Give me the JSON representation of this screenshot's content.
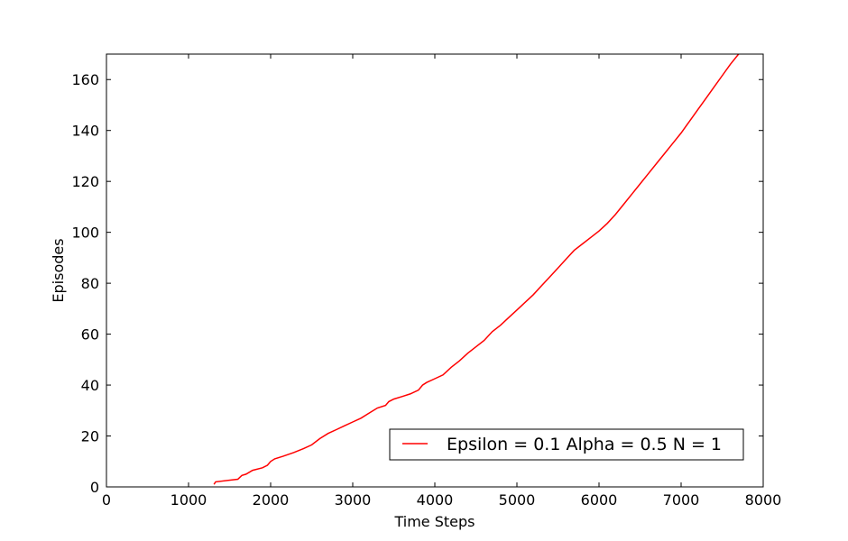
{
  "chart_data": {
    "type": "line",
    "xlabel": "Time Steps",
    "ylabel": "Episodes",
    "xlim": [
      0,
      8000
    ],
    "ylim": [
      0,
      170
    ],
    "xticks": [
      0,
      1000,
      2000,
      3000,
      4000,
      5000,
      6000,
      7000,
      8000
    ],
    "yticks": [
      0,
      20,
      40,
      60,
      80,
      100,
      120,
      140,
      160
    ],
    "grid": false,
    "legend_position": "lower-right",
    "series": [
      {
        "name": "Epsilon = 0.1 Alpha = 0.5 N = 1",
        "color": "#ff0000",
        "x": [
          1310,
          1330,
          1600,
          1650,
          1700,
          1780,
          1900,
          1960,
          2000,
          2050,
          2150,
          2280,
          2400,
          2500,
          2600,
          2700,
          2800,
          2900,
          3000,
          3100,
          3200,
          3300,
          3400,
          3440,
          3500,
          3600,
          3700,
          3800,
          3850,
          3900,
          4000,
          4100,
          4200,
          4300,
          4400,
          4500,
          4600,
          4700,
          4800,
          4900,
          5000,
          5100,
          5200,
          5300,
          5400,
          5500,
          5600,
          5700,
          5800,
          5900,
          6000,
          6100,
          6200,
          6300,
          6400,
          6500,
          6600,
          6700,
          6800,
          6900,
          7000,
          7100,
          7200,
          7300,
          7400,
          7500,
          7600,
          7700,
          7790
        ],
        "y": [
          1,
          2,
          3,
          4.5,
          5,
          6.5,
          7.5,
          8.5,
          10,
          11,
          12,
          13.5,
          15,
          16.5,
          19,
          21,
          22.5,
          24,
          25.5,
          27,
          29,
          31,
          32,
          33.5,
          34.5,
          35.5,
          36.5,
          38,
          40,
          41,
          42.5,
          44,
          47,
          49.5,
          52.5,
          55,
          57.5,
          61,
          63.5,
          66.5,
          69.5,
          72.5,
          75.5,
          79,
          82.5,
          86,
          89.5,
          93,
          95.5,
          98,
          100.5,
          103.5,
          107,
          111,
          115,
          119,
          123,
          127,
          131,
          135,
          139,
          143.5,
          148,
          152.5,
          157,
          161.5,
          166,
          170,
          171
        ]
      }
    ]
  }
}
